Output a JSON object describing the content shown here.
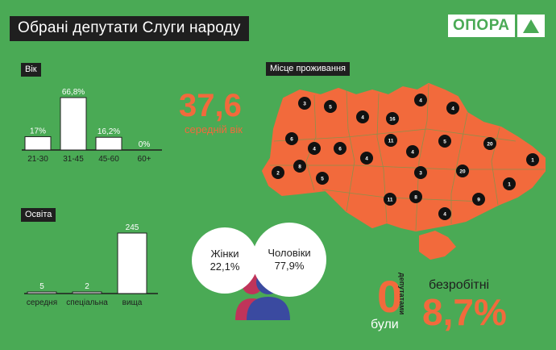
{
  "title": "Обрані депутати Слуги народу",
  "logo": {
    "text": "ОПОРА"
  },
  "age": {
    "label": "Вік",
    "average_value": "37,6",
    "average_label": "середній вік"
  },
  "education": {
    "label": "Освіта"
  },
  "residence": {
    "label": "Місце проживання"
  },
  "gender": {
    "women_label": "Жінки",
    "women_value": "22,1%",
    "men_label": "Чоловіки",
    "men_value": "77,9%"
  },
  "unemployed": {
    "zero": "0",
    "were": "були",
    "deputies": "депутатами",
    "label": "безробітні",
    "value": "8,7%"
  },
  "colors": {
    "background": "#4aaa55",
    "accent": "#f26a3c",
    "dark": "#1f1f1f",
    "woman": "#c0345a",
    "man": "#3a4aa0"
  },
  "chart_data": [
    {
      "type": "bar",
      "title": "Вік",
      "categories": [
        "21-30",
        "31-45",
        "45-60",
        "60+"
      ],
      "values": [
        17,
        66.8,
        16.2,
        0
      ],
      "value_labels": [
        "17%",
        "66,8%",
        "16,2%",
        "0%"
      ]
    },
    {
      "type": "bar",
      "title": "Освіта",
      "categories": [
        "середня",
        "спеціальна",
        "вища"
      ],
      "values": [
        5,
        2,
        245
      ],
      "value_labels": [
        "5",
        "2",
        "245"
      ]
    }
  ],
  "map": {
    "region_counts": [
      "3",
      "5",
      "4",
      "16",
      "4",
      "4",
      "6",
      "4",
      "6",
      "4",
      "11",
      "4",
      "5",
      "20",
      "1",
      "2",
      "8",
      "5",
      "3",
      "20",
      "1",
      "11",
      "8",
      "9",
      "4"
    ]
  }
}
